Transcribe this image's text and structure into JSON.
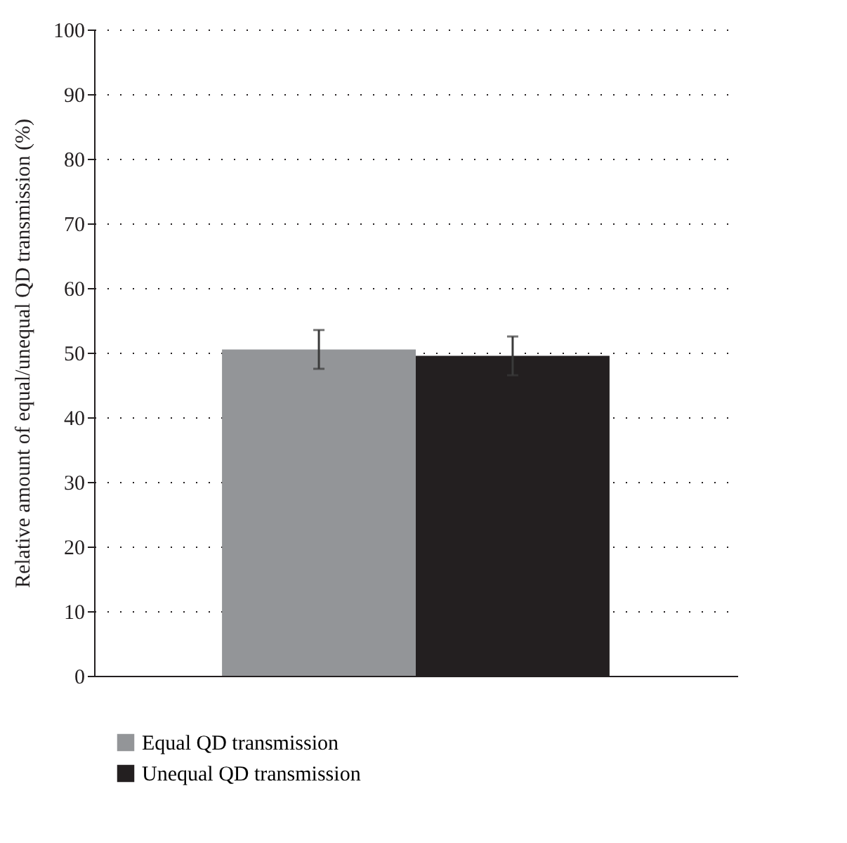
{
  "chart_data": {
    "type": "bar",
    "ylabel": "Relative amount of equal/unequal QD transmission (%)",
    "categories": [
      null
    ],
    "series": [
      {
        "name": "Equal QD transmission",
        "color": "#939598",
        "values": [
          50.5
        ],
        "errors": [
          3
        ]
      },
      {
        "name": "Unequal QD transmission",
        "color": "#231f20",
        "values": [
          49.5
        ],
        "errors": [
          3
        ]
      }
    ],
    "ylim": [
      0,
      100
    ],
    "yticks": [
      0,
      10,
      20,
      30,
      40,
      50,
      60,
      70,
      80,
      90,
      100
    ],
    "grid": "y",
    "legend": "bottom left"
  }
}
